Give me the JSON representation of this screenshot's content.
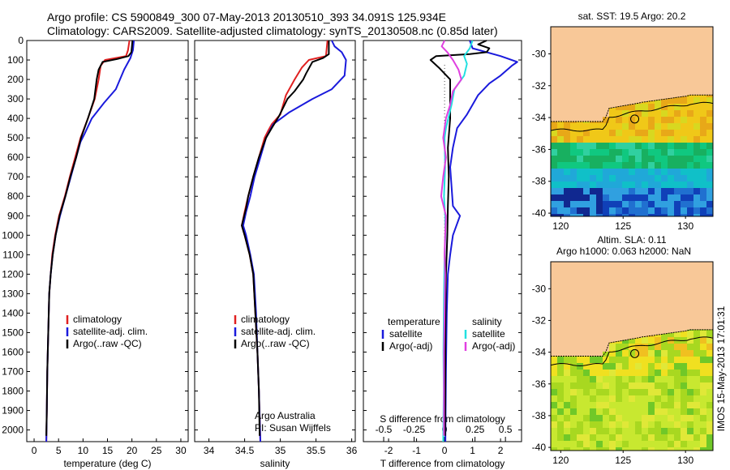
{
  "header": {
    "line1": "Argo profile: CS 5900849_300 07-May-2013 20130510_393 34.091S 125.934E",
    "line2": "Climatology: CARS2009. Satellite-adjusted climatology: synTS_20130508.nc (0.85d later)"
  },
  "colors": {
    "climatology": "#e02020",
    "satellite": "#1a1adc",
    "argo": "#000000",
    "s_satellite": "#22e0e0",
    "s_argo": "#e040e0",
    "land": "#f8c898",
    "marker_line": "#000000"
  },
  "chart_data": [
    {
      "type": "line",
      "id": "temperature-profile",
      "xlabel": "temperature (deg C)",
      "xlim": [
        -1.5,
        31.5
      ],
      "xticks": [
        "0",
        "5",
        "10",
        "15",
        "20",
        "25",
        "30"
      ],
      "ylim": [
        0,
        2060
      ],
      "yticks": [
        "0",
        "100",
        "200",
        "300",
        "400",
        "500",
        "600",
        "700",
        "800",
        "900",
        "1000",
        "1100",
        "1200",
        "1300",
        "1400",
        "1500",
        "1600",
        "1700",
        "1800",
        "1900",
        "2000"
      ],
      "legend": [
        "climatology",
        "satellite-adj. clim.",
        "Argo(..raw -QC)"
      ],
      "series": [
        {
          "name": "climatology",
          "color": "climatology",
          "points": [
            [
              19.5,
              0
            ],
            [
              19.2,
              50
            ],
            [
              18.8,
              80
            ],
            [
              14.5,
              100
            ],
            [
              13.6,
              130
            ],
            [
              13.2,
              200
            ],
            [
              12.4,
              300
            ],
            [
              11,
              400
            ],
            [
              9.5,
              500
            ],
            [
              8.4,
              600
            ],
            [
              7.3,
              700
            ],
            [
              6.3,
              800
            ],
            [
              5.1,
              900
            ],
            [
              4.3,
              1000
            ],
            [
              3.7,
              1100
            ],
            [
              3.4,
              1200
            ],
            [
              3.1,
              1300
            ],
            [
              2.9,
              1500
            ],
            [
              2.7,
              1700
            ],
            [
              2.6,
              1900
            ],
            [
              2.5,
              2060
            ]
          ]
        },
        {
          "name": "satellite-adj. clim.",
          "color": "satellite",
          "points": [
            [
              20.4,
              0
            ],
            [
              20.2,
              50
            ],
            [
              19.7,
              90
            ],
            [
              18.4,
              150
            ],
            [
              16.7,
              250
            ],
            [
              14.3,
              320
            ],
            [
              11.8,
              400
            ],
            [
              10.3,
              480
            ],
            [
              9.5,
              520
            ],
            [
              8.6,
              600
            ],
            [
              7.5,
              700
            ],
            [
              6.4,
              800
            ],
            [
              5.3,
              900
            ],
            [
              4.4,
              1000
            ],
            [
              3.8,
              1100
            ],
            [
              3.4,
              1200
            ],
            [
              3.1,
              1300
            ],
            [
              2.9,
              1500
            ],
            [
              2.7,
              1700
            ],
            [
              2.6,
              1900
            ],
            [
              2.5,
              2060
            ]
          ]
        },
        {
          "name": "Argo(..raw -QC)",
          "color": "argo",
          "points": [
            [
              20.1,
              0
            ],
            [
              19.9,
              60
            ],
            [
              19.3,
              80
            ],
            [
              17,
              95
            ],
            [
              14,
              110
            ],
            [
              13.2,
              150
            ],
            [
              12.8,
              200
            ],
            [
              12.3,
              300
            ],
            [
              11,
              400
            ],
            [
              9.6,
              500
            ],
            [
              8.6,
              600
            ],
            [
              7.4,
              700
            ],
            [
              6.4,
              800
            ],
            [
              5.2,
              900
            ],
            [
              4.4,
              1000
            ],
            [
              3.8,
              1100
            ],
            [
              3.4,
              1200
            ],
            [
              3.1,
              1300
            ],
            [
              2.9,
              1500
            ],
            [
              2.7,
              1700
            ],
            [
              2.6,
              1900
            ],
            [
              2.5,
              2030
            ]
          ]
        }
      ]
    },
    {
      "type": "line",
      "id": "salinity-profile",
      "xlabel": "salinity",
      "xlim": [
        33.8,
        36.05
      ],
      "xticks": [
        "34",
        "34.5",
        "35",
        "35.5",
        "36"
      ],
      "ylim": [
        0,
        2060
      ],
      "legend": [
        "climatology",
        "satellite-adj. clim.",
        "Argo(..raw -QC)"
      ],
      "annotations": [
        "Argo Australia",
        "PI: Susan Wijffels"
      ],
      "series": [
        {
          "name": "climatology",
          "color": "climatology",
          "points": [
            [
              35.66,
              0
            ],
            [
              35.64,
              80
            ],
            [
              35.4,
              100
            ],
            [
              35.3,
              140
            ],
            [
              35.2,
              200
            ],
            [
              35.08,
              280
            ],
            [
              35.0,
              380
            ],
            [
              34.88,
              430
            ],
            [
              34.82,
              470
            ],
            [
              34.78,
              500
            ],
            [
              34.7,
              600
            ],
            [
              34.62,
              700
            ],
            [
              34.55,
              800
            ],
            [
              34.5,
              880
            ],
            [
              34.46,
              950
            ],
            [
              34.5,
              1000
            ],
            [
              34.57,
              1100
            ],
            [
              34.62,
              1200
            ],
            [
              34.65,
              1400
            ],
            [
              34.68,
              1600
            ],
            [
              34.7,
              1800
            ],
            [
              34.72,
              2060
            ]
          ]
        },
        {
          "name": "satellite-adj. clim.",
          "color": "satellite",
          "points": [
            [
              35.72,
              0
            ],
            [
              35.76,
              30
            ],
            [
              35.86,
              60
            ],
            [
              35.92,
              100
            ],
            [
              35.9,
              180
            ],
            [
              35.72,
              250
            ],
            [
              35.45,
              300
            ],
            [
              35.12,
              370
            ],
            [
              34.9,
              430
            ],
            [
              34.8,
              500
            ],
            [
              34.72,
              600
            ],
            [
              34.64,
              700
            ],
            [
              34.58,
              800
            ],
            [
              34.52,
              880
            ],
            [
              34.48,
              950
            ],
            [
              34.52,
              1000
            ],
            [
              34.58,
              1100
            ],
            [
              34.63,
              1200
            ],
            [
              34.66,
              1400
            ],
            [
              34.68,
              1600
            ],
            [
              34.7,
              1800
            ],
            [
              34.72,
              2060
            ]
          ]
        },
        {
          "name": "Argo(..raw -QC)",
          "color": "argo",
          "points": [
            [
              35.68,
              0
            ],
            [
              35.68,
              70
            ],
            [
              35.6,
              90
            ],
            [
              35.45,
              110
            ],
            [
              35.36,
              170
            ],
            [
              35.32,
              200
            ],
            [
              35.2,
              260
            ],
            [
              35.1,
              300
            ],
            [
              34.98,
              390
            ],
            [
              34.88,
              450
            ],
            [
              34.8,
              500
            ],
            [
              34.7,
              600
            ],
            [
              34.62,
              700
            ],
            [
              34.55,
              800
            ],
            [
              34.52,
              860
            ],
            [
              34.46,
              950
            ],
            [
              34.5,
              1000
            ],
            [
              34.57,
              1100
            ],
            [
              34.62,
              1200
            ],
            [
              34.65,
              1400
            ],
            [
              34.68,
              1600
            ],
            [
              34.7,
              1800
            ],
            [
              34.71,
              2030
            ]
          ]
        }
      ]
    },
    {
      "type": "line",
      "id": "difference-profile",
      "xlabel": "T difference from climatology",
      "xlabel_top": "S difference from climatology",
      "xlim": [
        -2.9,
        2.75
      ],
      "xticks": [
        "-2",
        "-1",
        "0",
        "1",
        "2"
      ],
      "top_xticks": [
        "-0.5",
        "-0.25",
        "0",
        "0.25",
        "0.5"
      ],
      "ylim": [
        0,
        2060
      ],
      "legend_headers": [
        "temperature",
        "salinity"
      ],
      "legend": [
        "satellite",
        "Argo(-adj)",
        "satellite",
        "Argo(-adj)"
      ],
      "series": [
        {
          "name": "satellite",
          "group": "temperature",
          "color": "satellite",
          "points": [
            [
              0.9,
              0
            ],
            [
              1.0,
              40
            ],
            [
              2.0,
              80
            ],
            [
              2.6,
              110
            ],
            [
              2.4,
              130
            ],
            [
              2.0,
              180
            ],
            [
              1.6,
              220
            ],
            [
              1.2,
              280
            ],
            [
              0.8,
              380
            ],
            [
              0.45,
              450
            ],
            [
              0.3,
              550
            ],
            [
              0.2,
              650
            ],
            [
              0.25,
              750
            ],
            [
              0.3,
              850
            ],
            [
              0.55,
              900
            ],
            [
              0.3,
              1000
            ],
            [
              0.2,
              1100
            ],
            [
              0.12,
              1200
            ],
            [
              0.08,
              1400
            ],
            [
              0.05,
              1700
            ],
            [
              0.03,
              2060
            ]
          ]
        },
        {
          "name": "Argo(-adj)",
          "group": "temperature",
          "color": "argo",
          "points": [
            [
              1.5,
              0
            ],
            [
              1.2,
              20
            ],
            [
              1.6,
              40
            ],
            [
              1.5,
              60
            ],
            [
              0.9,
              70
            ],
            [
              -0.3,
              80
            ],
            [
              -0.5,
              100
            ],
            [
              -0.2,
              140
            ],
            [
              0.2,
              200
            ],
            [
              0.2,
              400
            ],
            [
              0.12,
              550
            ],
            [
              0.15,
              700
            ],
            [
              0.12,
              850
            ],
            [
              0.1,
              1000
            ],
            [
              0.05,
              1200
            ],
            [
              0.03,
              1500
            ],
            [
              0.02,
              2030
            ]
          ]
        },
        {
          "name": "satellite",
          "group": "salinity",
          "color": "s_satellite",
          "points": [
            [
              1.0,
              0
            ],
            [
              0.9,
              40
            ],
            [
              0.7,
              80
            ],
            [
              0.8,
              120
            ],
            [
              0.7,
              180
            ],
            [
              0.35,
              250
            ],
            [
              0.25,
              330
            ],
            [
              0.05,
              450
            ],
            [
              0,
              500
            ],
            [
              0.02,
              650
            ],
            [
              -0.02,
              800
            ],
            [
              0.02,
              900
            ],
            [
              0.03,
              1000
            ],
            [
              0,
              1100
            ],
            [
              -0.02,
              1300
            ],
            [
              -0.04,
              1600
            ],
            [
              -0.03,
              1800
            ],
            [
              -0.05,
              2060
            ]
          ]
        },
        {
          "name": "Argo(-adj)",
          "group": "salinity",
          "color": "s_argo",
          "points": [
            [
              0,
              0
            ],
            [
              -0.1,
              30
            ],
            [
              0.1,
              60
            ],
            [
              0.3,
              100
            ],
            [
              0.5,
              150
            ],
            [
              0.6,
              200
            ],
            [
              0.3,
              260
            ],
            [
              0.2,
              330
            ],
            [
              0.05,
              400
            ],
            [
              -0.05,
              500
            ],
            [
              0.05,
              600
            ],
            [
              -0.05,
              700
            ],
            [
              -0.12,
              800
            ],
            [
              0.05,
              900
            ],
            [
              0.02,
              1000
            ],
            [
              0.0,
              1100
            ],
            [
              0.02,
              1200
            ],
            [
              0.0,
              1400
            ],
            [
              -0.02,
              1600
            ],
            [
              -0.02,
              1800
            ],
            [
              -0.02,
              2030
            ]
          ]
        }
      ]
    },
    {
      "type": "heatmap",
      "id": "sst-map",
      "title": "sat. SST: 19.5 Argo: 20.2",
      "xlim": [
        119.2,
        132.2
      ],
      "ylim": [
        -40.2,
        -28.3
      ],
      "xticks": [
        "120",
        "125",
        "130"
      ],
      "yticks": [
        "-30",
        "-32",
        "-34",
        "-36",
        "-38",
        "-40"
      ],
      "marker": [
        125.93,
        -34.09
      ]
    },
    {
      "type": "heatmap",
      "id": "sla-map",
      "title": "Altim. SLA: 0.11",
      "subtitle": "Argo h1000: 0.063 h2000: NaN",
      "xlim": [
        119.2,
        132.2
      ],
      "ylim": [
        -40.2,
        -28.3
      ],
      "xticks": [
        "120",
        "125",
        "130"
      ],
      "yticks": [
        "-30",
        "-32",
        "-34",
        "-36",
        "-38",
        "-40"
      ],
      "marker": [
        125.93,
        -34.09
      ]
    }
  ],
  "side_label": "IMOS 15-May-2013 17:01:31"
}
